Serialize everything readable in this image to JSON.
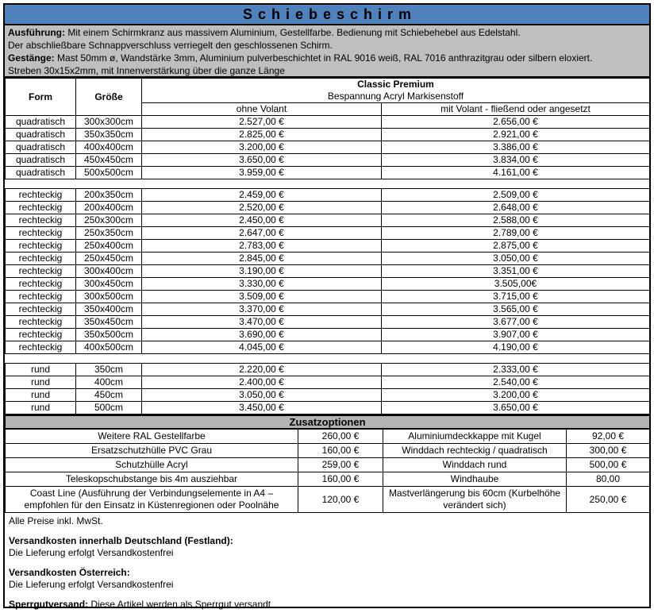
{
  "title": "Schiebeschirm",
  "colors": {
    "title_bg": "#4f81bd",
    "header_gray": "#bfbfbf",
    "zusatz_gray": "#b3b3b3"
  },
  "description": {
    "ausfuehrung_label": "Ausführung:",
    "ausfuehrung_text": " Mit einem Schirmkranz aus massivem Aluminium, Gestellfarbe. Bedienung mit Schiebehebel aus Edelstahl.",
    "line2": "Der abschließbare Schnappverschluss verriegelt den geschlossenen Schirm.",
    "gestaenge_label": "Gestänge:",
    "gestaenge_text": " Mast 50mm ø, Wandstärke 3mm, Aluminium pulverbeschichtet in RAL 9016 weiß, RAL 7016 anthrazitgrau oder silbern eloxiert.",
    "line4": "Streben 30x15x2mm, mit Innenverstärkung über die ganze Länge"
  },
  "price_table": {
    "headers": {
      "form": "Form",
      "groesse": "Größe",
      "product": "Classic Premium",
      "product_sub": "Bespannung Acryl Markisenstoff",
      "col_ohne": "ohne Volant",
      "col_mit": "mit Volant - fließend oder angesetzt"
    },
    "sections": [
      {
        "form": "quadratisch",
        "rows": [
          [
            "quadratisch",
            "300x300cm",
            "2.527,00 €",
            "2.656,00 €"
          ],
          [
            "quadratisch",
            "350x350cm",
            "2.825,00 €",
            "2.921,00 €"
          ],
          [
            "quadratisch",
            "400x400cm",
            "3.200,00 €",
            "3.386,00 €"
          ],
          [
            "quadratisch",
            "450x450cm",
            "3.650,00 €",
            "3.834,00 €"
          ],
          [
            "quadratisch",
            "500x500cm",
            "3.959,00 €",
            "4.161,00 €"
          ]
        ]
      },
      {
        "form": "rechteckig",
        "rows": [
          [
            "rechteckig",
            "200x350cm",
            "2.459,00 €",
            "2.509,00 €"
          ],
          [
            "rechteckig",
            "200x400cm",
            "2.520,00 €",
            "2.648,00 €"
          ],
          [
            "rechteckig",
            "250x300cm",
            "2.450,00 €",
            "2.588,00 €"
          ],
          [
            "rechteckig",
            "250x350cm",
            "2.647,00 €",
            "2.789,00 €"
          ],
          [
            "rechteckig",
            "250x400cm",
            "2.783,00 €",
            "2.875,00 €"
          ],
          [
            "rechteckig",
            "250x450cm",
            "2.845,00 €",
            "3.050,00 €"
          ],
          [
            "rechteckig",
            "300x400cm",
            "3.190,00 €",
            "3.351,00 €"
          ],
          [
            "rechteckig",
            "300x450cm",
            "3.330,00 €",
            "3.505,00€"
          ],
          [
            "rechteckig",
            "300x500cm",
            "3.509,00 €",
            "3.715,00 €"
          ],
          [
            "rechteckig",
            "350x400cm",
            "3.370,00 €",
            "3.565,00 €"
          ],
          [
            "rechteckig",
            "350x450cm",
            "3.470,00 €",
            "3.677,00 €"
          ],
          [
            "rechteckig",
            "350x500cm",
            "3.690,00 €",
            "3.907,00 €"
          ],
          [
            "rechteckig",
            "400x500cm",
            "4.045,00 €",
            "4.190,00 €"
          ]
        ]
      },
      {
        "form": "rund",
        "rows": [
          [
            "rund",
            "350cm",
            "2.220,00 €",
            "2.333,00 €"
          ],
          [
            "rund",
            "400cm",
            "2.400,00 €",
            "2.540,00 €"
          ],
          [
            "rund",
            "450cm",
            "3.050,00 €",
            "3.200,00 €"
          ],
          [
            "rund",
            "500cm",
            "3.450,00 €",
            "3.650,00 €"
          ]
        ]
      }
    ]
  },
  "zusatz": {
    "title": "Zusatzoptionen",
    "rows": [
      [
        "Weitere RAL Gestellfarbe",
        "260,00 €",
        "Aluminiumdeckkappe mit Kugel",
        "92,00 €"
      ],
      [
        "Ersatzschutzhülle PVC Grau",
        "160,00 €",
        "Winddach rechteckig / quadratisch",
        "300,00 €"
      ],
      [
        "Schutzhülle Acryl",
        "259,00 €",
        "Winddach rund",
        "500,00 €"
      ],
      [
        "Teleskopschubstange bis 4m ausziehbar",
        "160,00 €",
        "Windhaube",
        "80,00"
      ],
      [
        "Coast Line (Ausführung der Verbindungselemente in A4 – empfohlen für den Einsatz in Küstenregionen oder Poolnähe",
        "120,00 €",
        "Mastverlängerung bis 60cm (Kurbelhöhe verändert sich)",
        "250,00 €"
      ]
    ]
  },
  "footer": {
    "mwst": "Alle Preise inkl. MwSt.",
    "versand_de_label": "Versandkosten innerhalb Deutschland (Festland):",
    "versand_de_text": "Die Lieferung erfolgt Versandkostenfrei",
    "versand_at_label": "Versandkosten Österreich:",
    "versand_at_text": "Die Lieferung erfolgt Versandkostenfrei",
    "sperrgut_label": "Sperrgutversand:",
    "sperrgut_text": " Diese Artikel werden als Sperrgut versandt"
  }
}
